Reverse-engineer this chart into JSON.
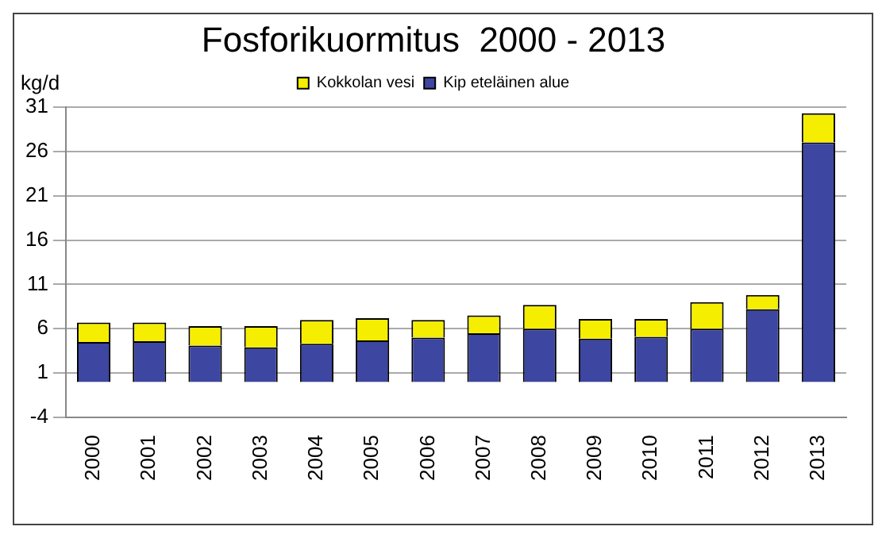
{
  "chart_data": {
    "type": "bar",
    "title": "Fosforikuormitus  2000 - 2013",
    "ylabel": "kg/d",
    "categories": [
      "2000",
      "2001",
      "2002",
      "2003",
      "2004",
      "2005",
      "2006",
      "2007",
      "2008",
      "2009",
      "2010",
      "2011",
      "2012",
      "2013"
    ],
    "series": [
      {
        "name": "Kip eteläinen alue",
        "color": "#3d46a0",
        "values": [
          4.5,
          4.6,
          4.1,
          3.9,
          4.3,
          4.7,
          5.0,
          5.5,
          6.0,
          4.9,
          5.1,
          6.0,
          8.2,
          27.0
        ]
      },
      {
        "name": "Kokkolan vesi",
        "color": "#f5ee00",
        "values": [
          2.2,
          2.1,
          2.2,
          2.4,
          2.7,
          2.5,
          2.0,
          2.0,
          2.7,
          2.2,
          2.0,
          3.0,
          1.6,
          3.3
        ]
      }
    ],
    "stacked": true,
    "ylim": [
      -4,
      31
    ],
    "yticks": [
      -4,
      1,
      6,
      11,
      16,
      21,
      26,
      31
    ],
    "grid": "y",
    "legend": "top"
  }
}
